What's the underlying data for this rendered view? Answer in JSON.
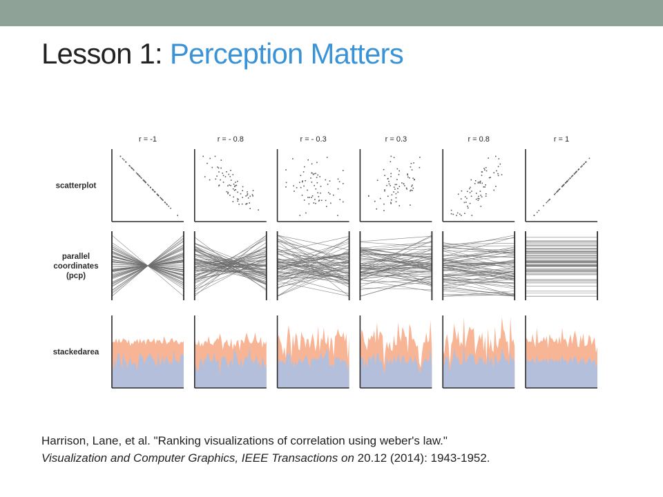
{
  "slide": {
    "top_bar_color": "#8fa297",
    "title_prefix": "Lesson 1: ",
    "title_main": "Perception Matters",
    "title_colors": {
      "prefix": "#222222",
      "main": "#3a93d6"
    }
  },
  "citation": {
    "line1": "Harrison, Lane, et al. \"Ranking visualizations of correlation using weber's law.\"",
    "journal": "Visualization and Computer Graphics, IEEE Transactions on",
    "details": " 20.12 (2014): 1943-1952."
  },
  "chart_data": {
    "type": "table",
    "description_kind": "small-multiples grid of correlation encodings",
    "columns": [
      {
        "label": "r = -1",
        "r": -1
      },
      {
        "label": "r = - 0.8",
        "r": -0.8
      },
      {
        "label": "r = - 0.3",
        "r": -0.3
      },
      {
        "label": "r = 0.3",
        "r": 0.3
      },
      {
        "label": "r = 0.8",
        "r": 0.8
      },
      {
        "label": "r = 1",
        "r": 1
      }
    ],
    "rows": [
      {
        "label_lines": [
          "scatterplot"
        ],
        "kind": "scatter"
      },
      {
        "label_lines": [
          "parallel",
          "coordinates",
          "(pcp)"
        ],
        "kind": "pcp"
      },
      {
        "label_lines": [
          "stackedarea"
        ],
        "kind": "stackedarea"
      }
    ],
    "colors": {
      "axis": "#2a2a2a",
      "points": "#555555",
      "pcp_lines": "#6d6d6d",
      "area_bottom": "#b4bfdc",
      "area_top": "#f7b596"
    }
  }
}
